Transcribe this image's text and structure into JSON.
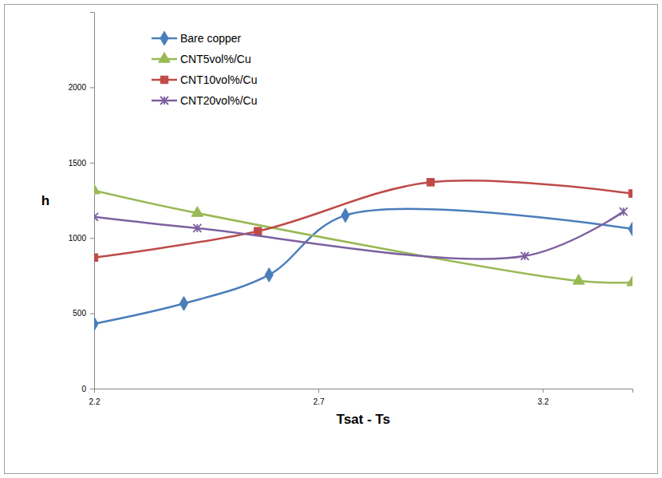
{
  "chart_data": {
    "type": "line",
    "x_label": "Tsat - Ts",
    "y_label": "h",
    "xlim": [
      2.2,
      3.4
    ],
    "xticks": [
      2.2,
      2.7,
      3.2
    ],
    "ylim": [
      0,
      2500
    ],
    "yticks": [
      0,
      500,
      1000,
      1500,
      2000
    ],
    "grid": false,
    "legend": "upper left",
    "series": [
      {
        "name": "Bare copper",
        "color": "#4a7ebb",
        "marker": "diamond",
        "line_style": "solid",
        "x": [
          2.2,
          2.4,
          2.59,
          2.76,
          3.4
        ],
        "values": [
          430,
          565,
          755,
          1150,
          1060
        ]
      },
      {
        "name": "CNT5vol%/Cu",
        "color": "#98b954",
        "marker": "triangle",
        "line_style": "solid",
        "x": [
          2.2,
          2.43,
          3.28,
          3.4
        ],
        "values": [
          1315,
          1165,
          715,
          705
        ]
      },
      {
        "name": "CNT10vol%/Cu",
        "color": "#be4b48",
        "marker": "square",
        "line_style": "solid",
        "x": [
          2.2,
          2.565,
          2.95,
          3.4
        ],
        "values": [
          870,
          1045,
          1370,
          1295
        ]
      },
      {
        "name": "CNT20vol%/Cu",
        "color": "#7d60a0",
        "marker": "star",
        "line_style": "solid",
        "x": [
          2.2,
          2.43,
          3.16,
          3.38
        ],
        "values": [
          1140,
          1065,
          880,
          1175
        ]
      }
    ]
  }
}
